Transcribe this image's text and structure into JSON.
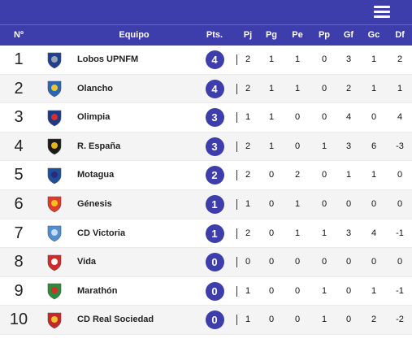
{
  "header": {
    "pos": "Nº",
    "team": "Equipo",
    "pts": "Pts.",
    "pj": "Pj",
    "pg": "Pg",
    "pe": "Pe",
    "pp": "Pp",
    "gf": "Gf",
    "gc": "Gc",
    "df": "Df"
  },
  "accent_color": "#3d3dab",
  "icons": {
    "menu": "menu-icon"
  },
  "rows": [
    {
      "pos": "1",
      "team": "Lobos UPNFM",
      "pts": "4",
      "pj": "2",
      "pg": "1",
      "pe": "1",
      "pp": "0",
      "gf": "3",
      "gc": "1",
      "df": "2",
      "logo_color": "#1f3f8f",
      "logo_accent": "#9aa3b5"
    },
    {
      "pos": "2",
      "team": "Olancho",
      "pts": "4",
      "pj": "2",
      "pg": "1",
      "pe": "1",
      "pp": "0",
      "gf": "2",
      "gc": "1",
      "df": "1",
      "logo_color": "#2a66b8",
      "logo_accent": "#e8c531"
    },
    {
      "pos": "3",
      "team": "Olimpia",
      "pts": "3",
      "pj": "1",
      "pg": "1",
      "pe": "0",
      "pp": "0",
      "gf": "4",
      "gc": "0",
      "df": "4",
      "logo_color": "#1a3a8a",
      "logo_accent": "#d62d2d"
    },
    {
      "pos": "4",
      "team": "R. España",
      "pts": "3",
      "pj": "2",
      "pg": "1",
      "pe": "0",
      "pp": "1",
      "gf": "3",
      "gc": "6",
      "df": "-3",
      "logo_color": "#1a1a1a",
      "logo_accent": "#e2b321"
    },
    {
      "pos": "5",
      "team": "Motagua",
      "pts": "2",
      "pj": "2",
      "pg": "0",
      "pe": "2",
      "pp": "0",
      "gf": "1",
      "gc": "1",
      "df": "0",
      "logo_color": "#1d4f9c",
      "logo_accent": "#2a2a7a"
    },
    {
      "pos": "6",
      "team": "Génesis",
      "pts": "1",
      "pj": "1",
      "pg": "0",
      "pe": "1",
      "pp": "0",
      "gf": "0",
      "gc": "0",
      "df": "0",
      "logo_color": "#e03a2a",
      "logo_accent": "#f5c21b"
    },
    {
      "pos": "7",
      "team": "CD Victoria",
      "pts": "1",
      "pj": "2",
      "pg": "0",
      "pe": "1",
      "pp": "1",
      "gf": "3",
      "gc": "4",
      "df": "-1",
      "logo_color": "#4f8fd1",
      "logo_accent": "#c9dcef"
    },
    {
      "pos": "8",
      "team": "Vida",
      "pts": "0",
      "pj": "0",
      "pg": "0",
      "pe": "0",
      "pp": "0",
      "gf": "0",
      "gc": "0",
      "df": "0",
      "logo_color": "#d32a2a",
      "logo_accent": "#ffffff"
    },
    {
      "pos": "9",
      "team": "Marathón",
      "pts": "0",
      "pj": "1",
      "pg": "0",
      "pe": "0",
      "pp": "1",
      "gf": "0",
      "gc": "1",
      "df": "-1",
      "logo_color": "#2e8b3a",
      "logo_accent": "#d62d2d"
    },
    {
      "pos": "10",
      "team": "CD Real Sociedad",
      "pts": "0",
      "pj": "1",
      "pg": "0",
      "pe": "0",
      "pp": "1",
      "gf": "0",
      "gc": "2",
      "df": "-2",
      "logo_color": "#c62828",
      "logo_accent": "#e8c531"
    }
  ]
}
